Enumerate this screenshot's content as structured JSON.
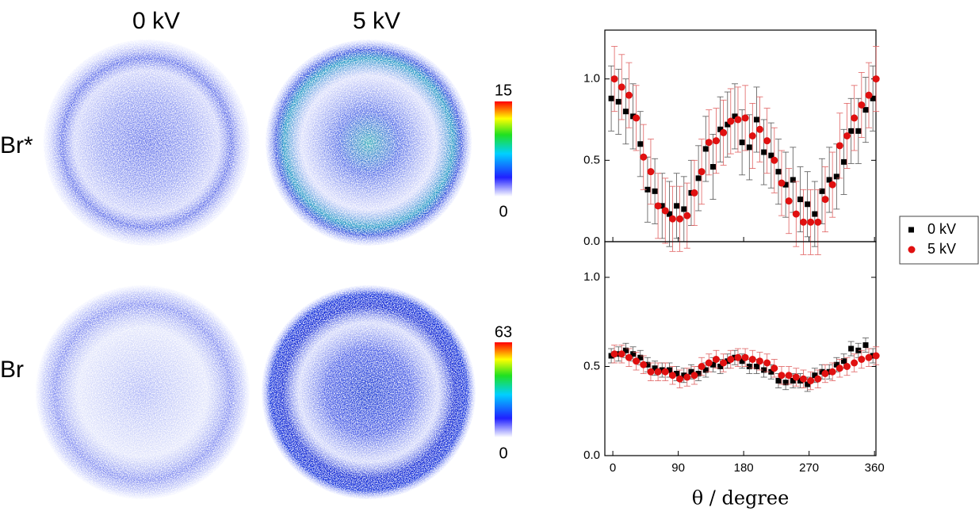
{
  "images": {
    "columns": [
      "0 kV",
      "5 kV"
    ],
    "rows": [
      "Br*",
      "Br"
    ],
    "colorbars": [
      {
        "max": 15,
        "min": 0
      },
      {
        "max": 63,
        "min": 0
      }
    ]
  },
  "chart_data": [
    {
      "type": "scatter",
      "x": [
        0,
        10,
        20,
        30,
        40,
        50,
        60,
        70,
        80,
        90,
        100,
        110,
        120,
        130,
        140,
        150,
        160,
        170,
        180,
        190,
        200,
        210,
        220,
        230,
        240,
        250,
        260,
        270,
        280,
        290,
        300,
        310,
        320,
        330,
        340,
        350,
        360
      ],
      "xlim": [
        -11,
        362
      ],
      "ylim": [
        0,
        1.3
      ],
      "yticks": [
        {
          "value": 0,
          "label": "0.0"
        },
        {
          "value": 0.5,
          "label": "0.5"
        },
        {
          "value": 1,
          "label": "1.0"
        }
      ],
      "legend": "right",
      "series": [
        {
          "name": "0 kV",
          "color": "#000000",
          "marker": "square",
          "error": 0.2,
          "values": [
            0.88,
            0.86,
            0.8,
            0.77,
            0.6,
            0.32,
            0.31,
            0.22,
            0.17,
            0.22,
            0.2,
            0.3,
            0.39,
            0.57,
            0.46,
            0.69,
            0.72,
            0.77,
            0.61,
            0.58,
            0.75,
            0.55,
            0.53,
            0.43,
            0.35,
            0.38,
            0.26,
            0.23,
            0.17,
            0.31,
            0.38,
            0.4,
            0.49,
            0.68,
            0.68,
            0.81,
            0.88
          ]
        },
        {
          "name": "5 kV",
          "color": "#e01010",
          "marker": "circle",
          "error": 0.2,
          "values": [
            1.0,
            0.95,
            0.9,
            0.76,
            0.52,
            0.43,
            0.22,
            0.19,
            0.14,
            0.14,
            0.16,
            0.3,
            0.43,
            0.61,
            0.62,
            0.67,
            0.74,
            0.75,
            0.76,
            0.65,
            0.69,
            0.62,
            0.5,
            0.36,
            0.25,
            0.17,
            0.12,
            0.12,
            0.12,
            0.26,
            0.35,
            0.59,
            0.65,
            0.76,
            0.84,
            0.9,
            1.0
          ]
        }
      ]
    },
    {
      "type": "scatter",
      "x": [
        0,
        10,
        20,
        30,
        40,
        50,
        60,
        70,
        80,
        90,
        100,
        110,
        120,
        130,
        140,
        150,
        160,
        170,
        180,
        190,
        200,
        210,
        220,
        230,
        240,
        250,
        260,
        270,
        280,
        290,
        300,
        310,
        320,
        330,
        340,
        350,
        360
      ],
      "xlim": [
        -11,
        362
      ],
      "ylim": [
        0,
        1.2
      ],
      "xticks": [
        0,
        90,
        180,
        270,
        360
      ],
      "yticks": [
        {
          "value": 0,
          "label": "0.0"
        },
        {
          "value": 0.5,
          "label": "0.5"
        },
        {
          "value": 1,
          "label": "1.0"
        }
      ],
      "xlabel": "θ / degree",
      "series": [
        {
          "color": "#000000",
          "marker": "square",
          "error": 0.04,
          "values": [
            0.56,
            0.57,
            0.59,
            0.57,
            0.55,
            0.51,
            0.49,
            0.48,
            0.48,
            0.46,
            0.45,
            0.47,
            0.46,
            0.48,
            0.51,
            0.5,
            0.53,
            0.55,
            0.53,
            0.5,
            0.5,
            0.48,
            0.47,
            0.42,
            0.41,
            0.42,
            0.42,
            0.4,
            0.45,
            0.47,
            0.47,
            0.51,
            0.53,
            0.6,
            0.59,
            0.62,
            0.56
          ]
        },
        {
          "color": "#e01010",
          "marker": "circle",
          "error": 0.05,
          "values": [
            0.57,
            0.57,
            0.55,
            0.53,
            0.51,
            0.47,
            0.47,
            0.47,
            0.45,
            0.43,
            0.44,
            0.45,
            0.5,
            0.52,
            0.54,
            0.52,
            0.54,
            0.55,
            0.55,
            0.54,
            0.53,
            0.52,
            0.49,
            0.45,
            0.45,
            0.44,
            0.43,
            0.42,
            0.43,
            0.46,
            0.47,
            0.49,
            0.5,
            0.52,
            0.54,
            0.55,
            0.56
          ]
        }
      ]
    }
  ]
}
